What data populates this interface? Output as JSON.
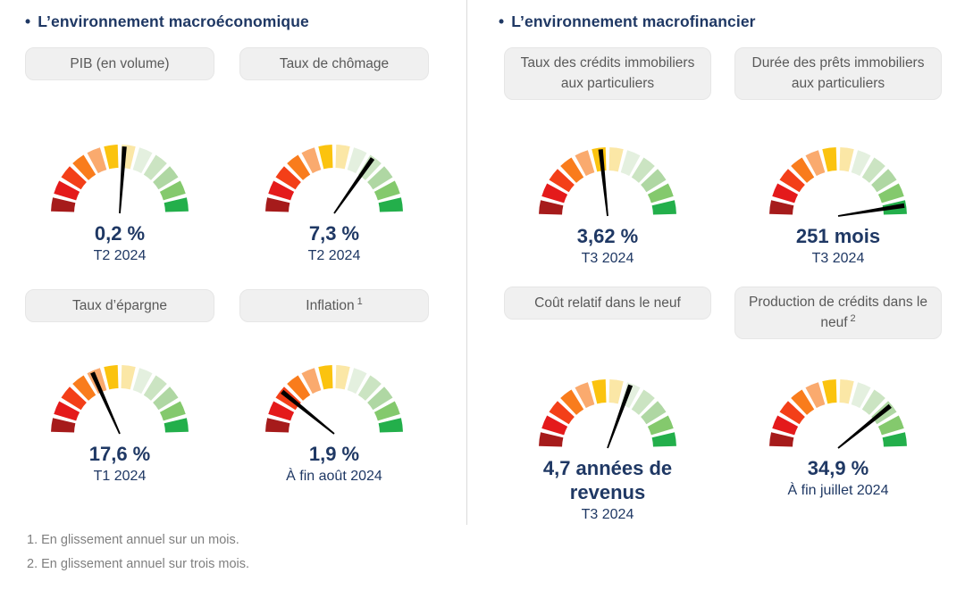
{
  "bullet": "•",
  "sections": [
    {
      "title": "L’environnement macroéconomique",
      "gauges": [
        {
          "label": "PIB (en volume)",
          "value": "0,2 %",
          "period": "T2 2024",
          "needle_angle_deg": 4
        },
        {
          "label": "Taux de chômage",
          "value": "7,3 %",
          "period": "T2 2024",
          "needle_angle_deg": 35
        },
        {
          "label": "Taux d’épargne",
          "value": "17,6 %",
          "period": "T1 2024",
          "needle_angle_deg": -24
        },
        {
          "label": "Inflation",
          "sup": "1",
          "value": "1,9 %",
          "period": "À fin août 2024",
          "needle_angle_deg": -51
        }
      ]
    },
    {
      "title": "L’environnement macrofinancier",
      "gauges": [
        {
          "label": "Taux des crédits immobiliers aux particuliers",
          "value": "3,62 %",
          "period": "T3 2024",
          "needle_angle_deg": -6
        },
        {
          "label": "Durée des prêts immobiliers aux particuliers",
          "value": "251 mois",
          "period": "T3 2024",
          "needle_angle_deg": 81
        },
        {
          "label": "Coût relatif dans le neuf",
          "value": "4,7 années de revenus",
          "period": "T3 2024",
          "needle_angle_deg": 20
        },
        {
          "label": "Production de crédits dans le neuf",
          "sup": "2",
          "value": "34,9 %",
          "period": "À fin juillet 2024",
          "needle_angle_deg": 51
        }
      ]
    }
  ],
  "footnotes": [
    "1. En glissement annuel sur un mois.",
    "2. En glissement annuel sur trois mois."
  ],
  "gauge_colors": [
    "#A61B1B",
    "#E41A1B",
    "#F33F18",
    "#F97C1C",
    "#FAAA6E",
    "#FBC30F",
    "#FBE7A6",
    "#E4F0DF",
    "#CBE4C2",
    "#AFD7A3",
    "#84C96D",
    "#23AF4B"
  ],
  "colors": {
    "title_text": "#1F3864",
    "value_text": "#1F3864",
    "label_bg": "#F0F0F0",
    "label_text": "#595959",
    "footnote_text": "#7F7F7F",
    "needle": "#000000",
    "divider": "#DBDBDB"
  },
  "chart_data": [
    {
      "type": "gauge",
      "label": "PIB (en volume)",
      "value": 0.2,
      "unit": "%",
      "period": "T2 2024",
      "needle_angle_deg": 4,
      "scale": "semicircle -90(red) to +90(green), 12 segments"
    },
    {
      "type": "gauge",
      "label": "Taux de chômage",
      "value": 7.3,
      "unit": "%",
      "period": "T2 2024",
      "needle_angle_deg": 35,
      "scale": "semicircle -90(red) to +90(green), 12 segments"
    },
    {
      "type": "gauge",
      "label": "Taux d’épargne",
      "value": 17.6,
      "unit": "%",
      "period": "T1 2024",
      "needle_angle_deg": -24,
      "scale": "semicircle -90(red) to +90(green), 12 segments"
    },
    {
      "type": "gauge",
      "label": "Inflation",
      "value": 1.9,
      "unit": "%",
      "period": "À fin août 2024",
      "needle_angle_deg": -51,
      "scale": "semicircle -90(red) to +90(green), 12 segments"
    },
    {
      "type": "gauge",
      "label": "Taux des crédits immobiliers aux particuliers",
      "value": 3.62,
      "unit": "%",
      "period": "T3 2024",
      "needle_angle_deg": -6,
      "scale": "semicircle -90(red) to +90(green), 12 segments"
    },
    {
      "type": "gauge",
      "label": "Durée des prêts immobiliers aux particuliers",
      "value": 251,
      "unit": "mois",
      "period": "T3 2024",
      "needle_angle_deg": 81,
      "scale": "semicircle -90(red) to +90(green), 12 segments"
    },
    {
      "type": "gauge",
      "label": "Coût relatif dans le neuf",
      "value": 4.7,
      "unit": "années de revenus",
      "period": "T3 2024",
      "needle_angle_deg": 20,
      "scale": "semicircle -90(red) to +90(green), 12 segments"
    },
    {
      "type": "gauge",
      "label": "Production de crédits dans le neuf",
      "value": 34.9,
      "unit": "%",
      "period": "À fin juillet 2024",
      "needle_angle_deg": 51,
      "scale": "semicircle -90(red) to +90(green), 12 segments"
    }
  ]
}
